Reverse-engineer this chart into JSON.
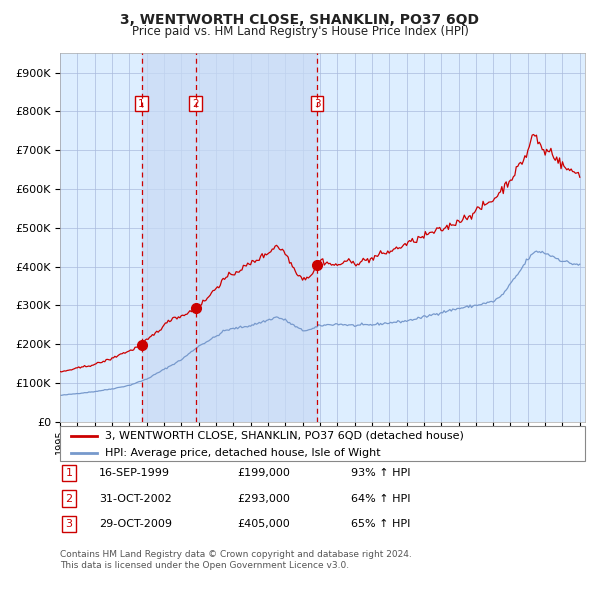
{
  "title": "3, WENTWORTH CLOSE, SHANKLIN, PO37 6QD",
  "subtitle": "Price paid vs. HM Land Registry's House Price Index (HPI)",
  "legend_line1": "3, WENTWORTH CLOSE, SHANKLIN, PO37 6QD (detached house)",
  "legend_line2": "HPI: Average price, detached house, Isle of Wight",
  "transactions": [
    {
      "num": 1,
      "date": "16-SEP-1999",
      "price": 199000,
      "pct": "93%",
      "direction": "↑"
    },
    {
      "num": 2,
      "date": "31-OCT-2002",
      "price": 293000,
      "pct": "64%",
      "direction": "↑"
    },
    {
      "num": 3,
      "date": "29-OCT-2009",
      "price": 405000,
      "pct": "65%",
      "direction": "↑"
    }
  ],
  "footnote1": "Contains HM Land Registry data © Crown copyright and database right 2024.",
  "footnote2": "This data is licensed under the Open Government Licence v3.0.",
  "red_color": "#cc0000",
  "blue_color": "#7799cc",
  "bg_color": "#ddeeff",
  "grid_color": "#aabbdd",
  "vline_color": "#cc0000",
  "highlight_color": "#c8daf5",
  "ylim_max": 950000,
  "trans_decimal_dates": [
    1999.708,
    2002.833,
    2009.833
  ],
  "trans_prices": [
    199000,
    293000,
    405000
  ]
}
